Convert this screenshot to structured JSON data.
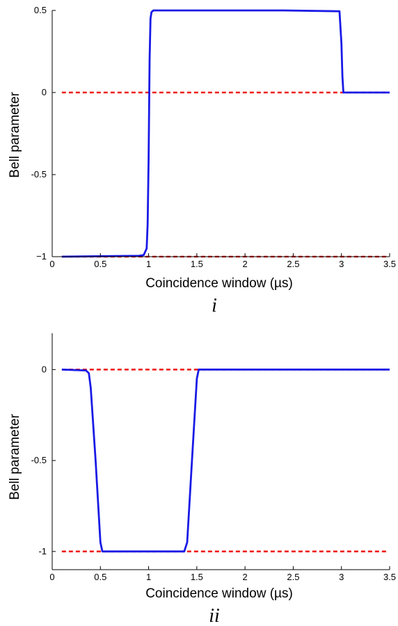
{
  "chart_data": [
    {
      "type": "line",
      "panel_label": "i",
      "xlabel": "Coincidence window (µs)",
      "ylabel": "Bell parameter",
      "xlim": [
        0,
        3.5
      ],
      "ylim": [
        -1,
        0.5
      ],
      "xticks": [
        0,
        0.5,
        1,
        1.5,
        2,
        2.5,
        3,
        3.5
      ],
      "xtick_labels": [
        "0",
        "0.5",
        "1",
        "1.5",
        "2",
        "2.5",
        "3",
        "3.5"
      ],
      "yticks": [
        -1,
        -0.5,
        0,
        0.5
      ],
      "ytick_labels": [
        "−1",
        "-0.5",
        "0",
        "0.5"
      ],
      "grid": false,
      "reference_lines": [
        {
          "y": 0,
          "color": "#ee1c1c",
          "style": "dashed"
        },
        {
          "y": -1,
          "color": "#ee1c1c",
          "style": "dashed"
        }
      ],
      "series": [
        {
          "color": "#1a1ae6",
          "x": [
            0.1,
            0.9,
            0.95,
            0.98,
            0.99,
            1.0,
            1.01,
            1.02,
            1.03,
            1.05,
            1.5,
            2.0,
            2.4,
            2.98,
            3.0,
            3.01,
            3.02,
            3.05,
            3.5
          ],
          "y": [
            -1.0,
            -0.995,
            -0.99,
            -0.95,
            -0.8,
            -0.4,
            0.2,
            0.45,
            0.49,
            0.5,
            0.5,
            0.5,
            0.5,
            0.495,
            0.3,
            0.1,
            0.0,
            0.0,
            0.0
          ]
        }
      ]
    },
    {
      "type": "line",
      "panel_label": "ii",
      "xlabel": "Coincidence window (µs)",
      "ylabel": "Bell parameter",
      "xlim": [
        0,
        3.5
      ],
      "ylim": [
        -1.1,
        0.2
      ],
      "xticks": [
        0,
        0.5,
        1,
        1.5,
        2,
        2.5,
        3,
        3.5
      ],
      "xtick_labels": [
        "0",
        "0.5",
        "1",
        "1.5",
        "2",
        "2.5",
        "3",
        "3.5"
      ],
      "yticks": [
        -1,
        -0.5,
        0
      ],
      "ytick_labels": [
        "-1",
        "-0.5",
        "0"
      ],
      "grid": false,
      "reference_lines": [
        {
          "y": 0,
          "color": "#ee1c1c",
          "style": "dashed"
        },
        {
          "y": -1,
          "color": "#ee1c1c",
          "style": "dashed"
        }
      ],
      "series": [
        {
          "color": "#1a1ae6",
          "x": [
            0.1,
            0.35,
            0.38,
            0.4,
            0.45,
            0.5,
            0.52,
            1.0,
            1.37,
            1.4,
            1.45,
            1.5,
            1.52,
            3.5
          ],
          "y": [
            0.0,
            -0.005,
            -0.02,
            -0.1,
            -0.5,
            -0.95,
            -1.0,
            -1.0,
            -1.0,
            -0.95,
            -0.5,
            -0.05,
            0.0,
            0.0
          ]
        }
      ]
    }
  ]
}
